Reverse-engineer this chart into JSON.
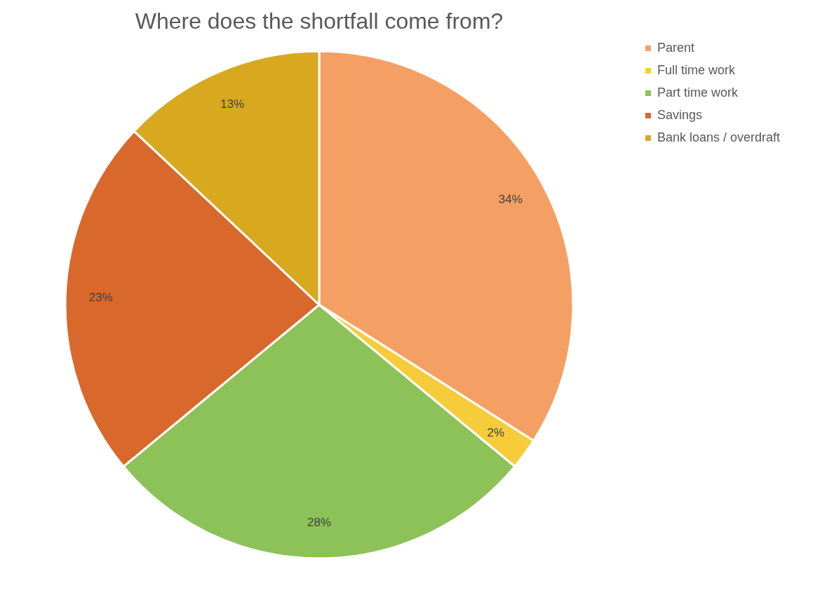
{
  "chart_data": {
    "type": "pie",
    "title": "Where does the shortfall come from?",
    "categories": [
      "Parent",
      "Full time work",
      "Part time work",
      "Savings",
      "Bank loans / overdraft"
    ],
    "values": [
      34,
      2,
      28,
      23,
      13
    ],
    "value_labels": [
      "34%",
      "2%",
      "28%",
      "23%",
      "13%"
    ],
    "colors": [
      "#f4a064",
      "#f7cc3a",
      "#8cc258",
      "#d9682c",
      "#d8a81e"
    ],
    "legend": "right"
  }
}
